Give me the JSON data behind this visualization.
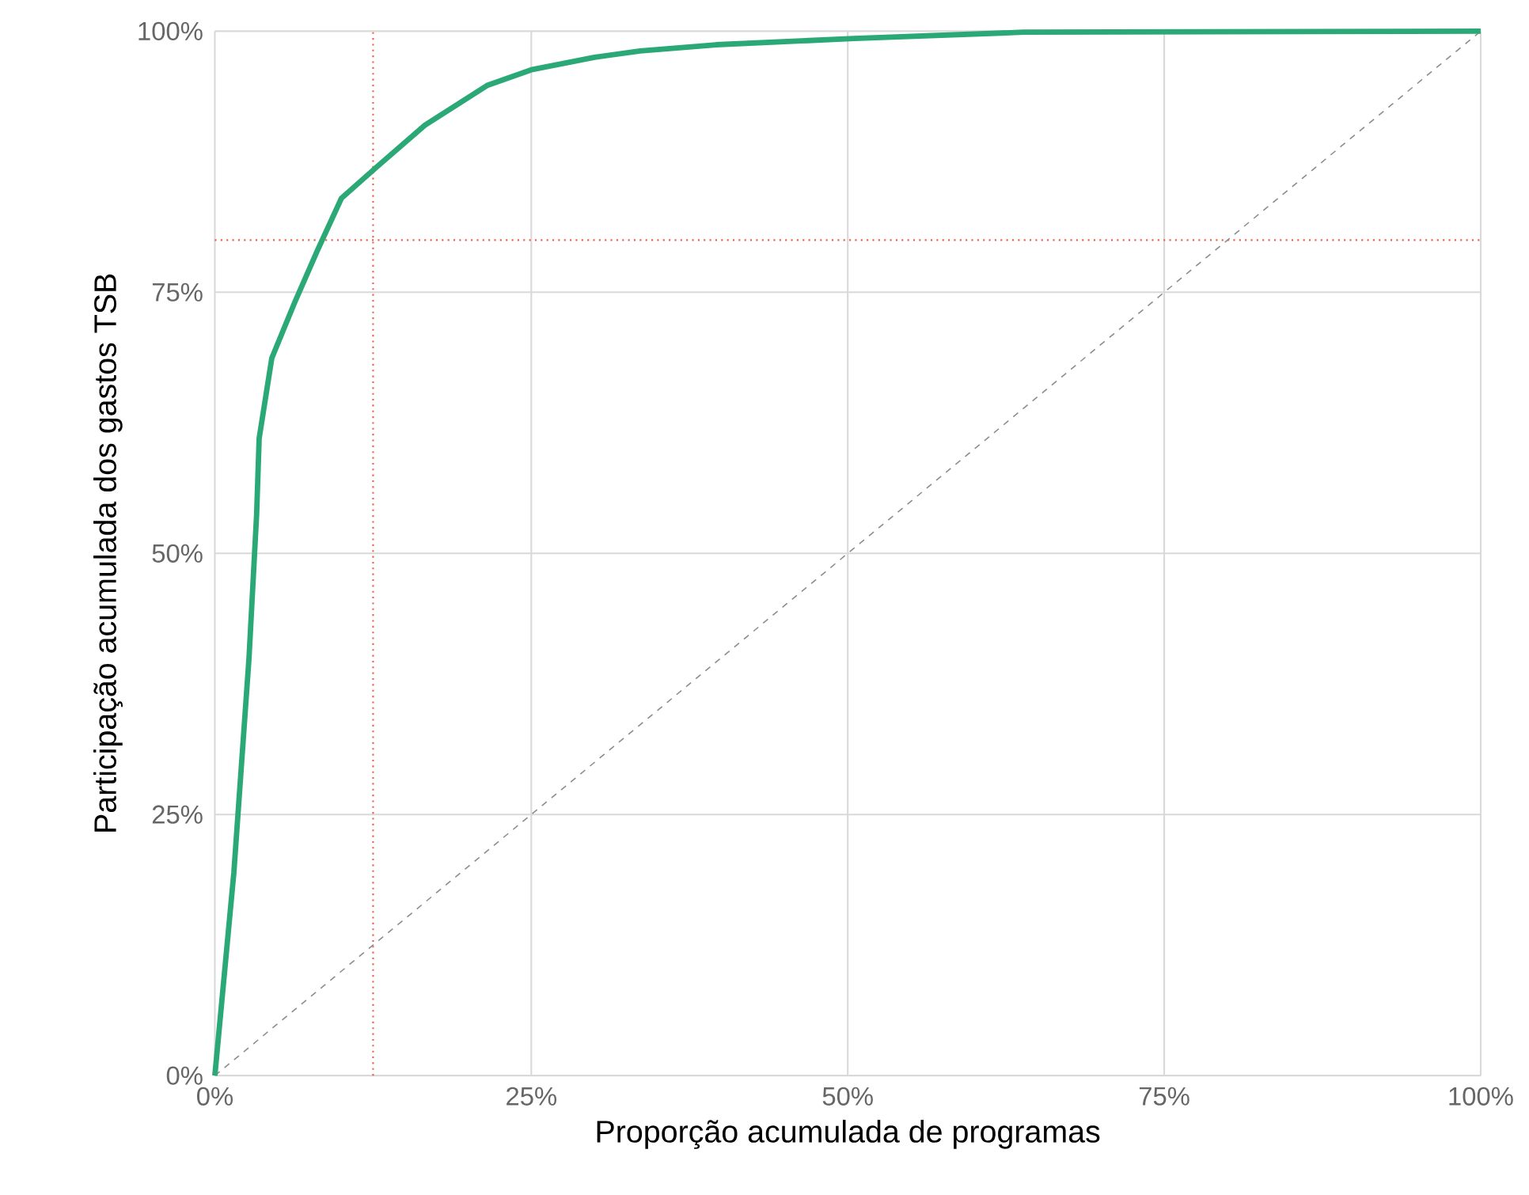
{
  "chart_data": {
    "type": "line",
    "xlabel": "Proporção acumulada de programas",
    "ylabel": "Participação acumulada dos gastos TSB",
    "xlim": [
      0,
      100
    ],
    "ylim": [
      0,
      100
    ],
    "xticks": [
      {
        "value": 0,
        "label": "0%"
      },
      {
        "value": 25,
        "label": "25%"
      },
      {
        "value": 50,
        "label": "50%"
      },
      {
        "value": 75,
        "label": "75%"
      },
      {
        "value": 100,
        "label": "100%"
      }
    ],
    "yticks": [
      {
        "value": 0,
        "label": "0%"
      },
      {
        "value": 25,
        "label": "25%"
      },
      {
        "value": 50,
        "label": "50%"
      },
      {
        "value": 75,
        "label": "75%"
      },
      {
        "value": 100,
        "label": "100%"
      }
    ],
    "grid": true,
    "series": [
      {
        "color": "#2aa876",
        "line_style": "solid",
        "x": [
          0,
          1.5,
          2.7,
          3.3,
          3.5,
          4.5,
          6.3,
          8.1,
          10,
          12.7,
          16.6,
          21.5,
          25,
          30,
          33.6,
          39.6,
          50.5,
          63.9,
          100
        ],
        "values": [
          0,
          19.4,
          40,
          53.7,
          61,
          68.7,
          74,
          79,
          84,
          86.9,
          91,
          94.8,
          96.3,
          97.5,
          98.1,
          98.7,
          99.3,
          99.9,
          100
        ]
      },
      {
        "color": "#8c8c8c",
        "line_style": "dashed",
        "x": [
          0,
          100
        ],
        "values": [
          0,
          100
        ]
      }
    ],
    "ref_lines": [
      {
        "axis": "x",
        "value": 12.5,
        "color": "#e8604c",
        "line_style": "dotted"
      },
      {
        "axis": "y",
        "value": 80,
        "color": "#e8604c",
        "line_style": "dotted"
      }
    ]
  }
}
